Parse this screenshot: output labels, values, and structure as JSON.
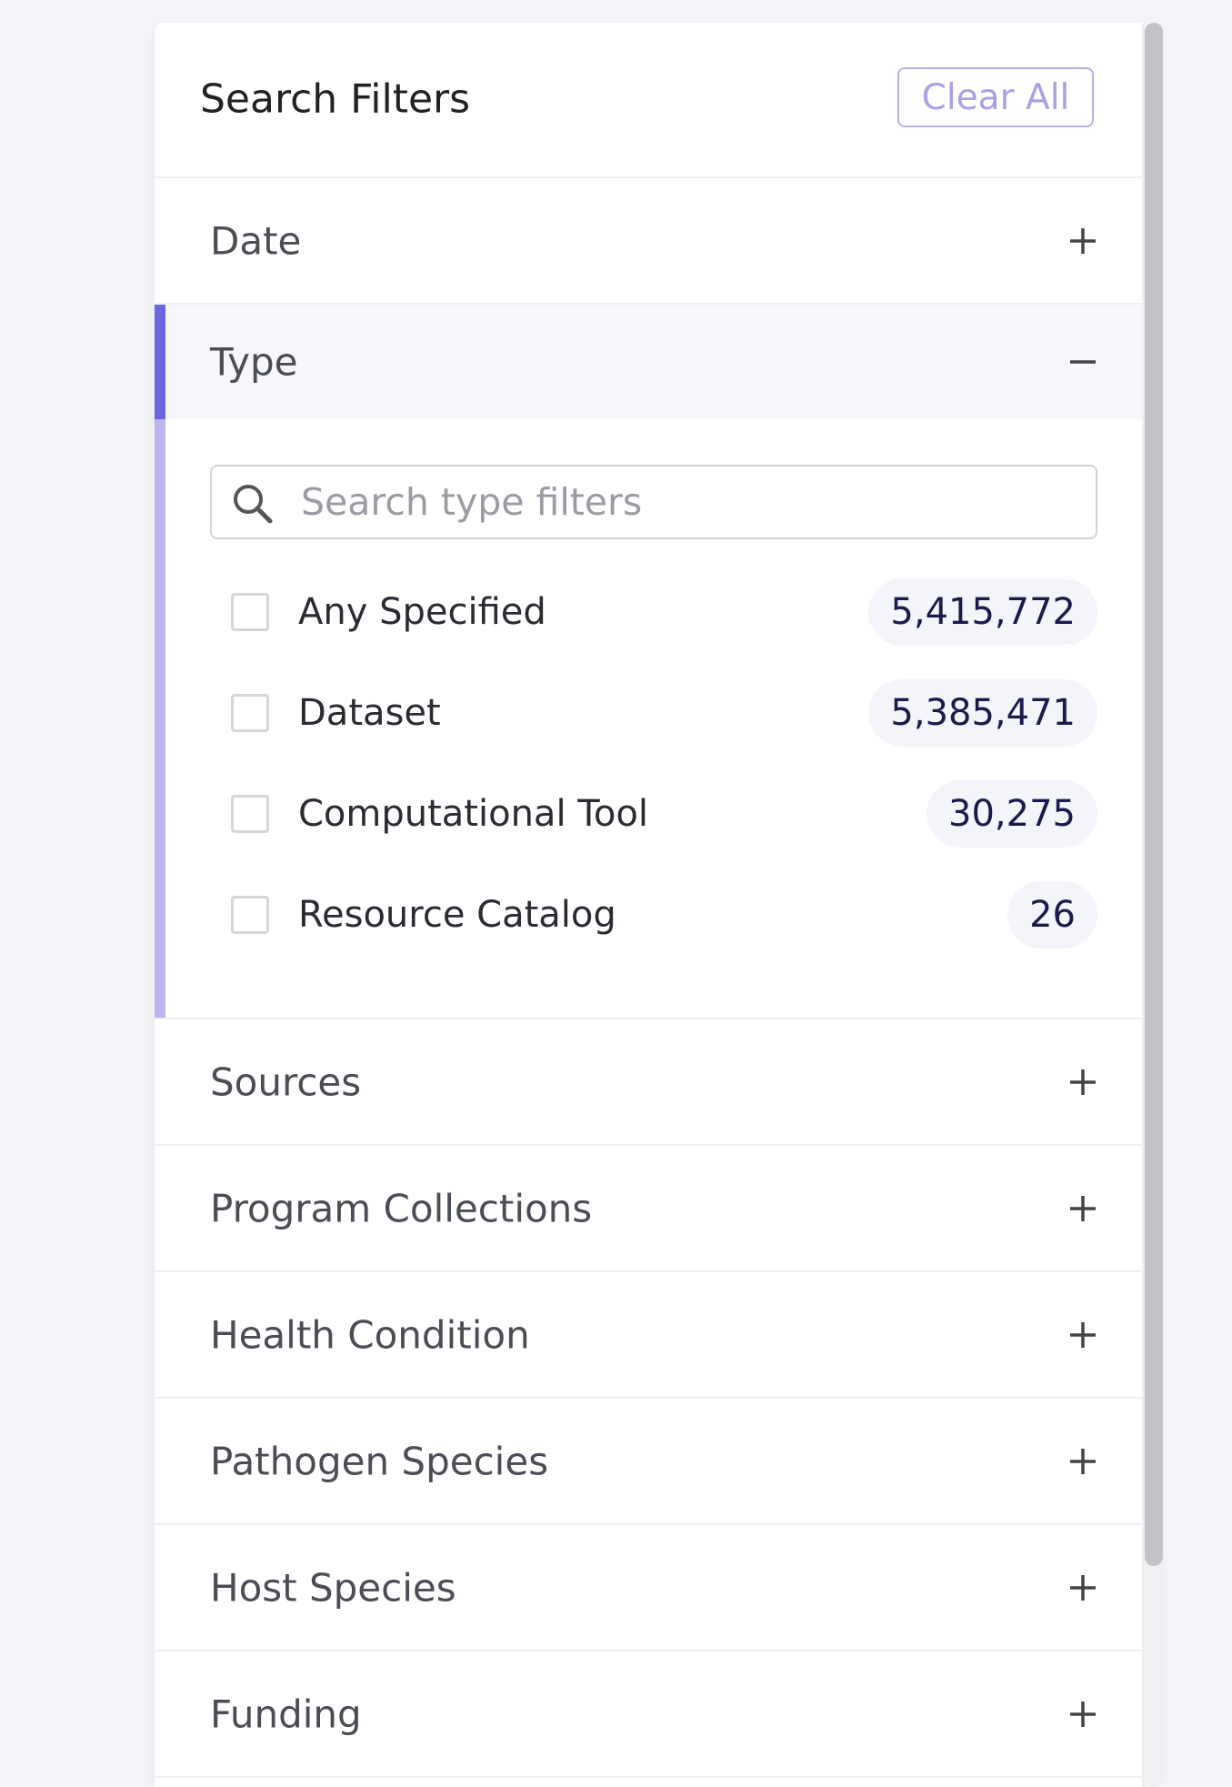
{
  "header": {
    "title": "Search Filters",
    "clear_button": "Clear All"
  },
  "sections_before": [
    {
      "label": "Date"
    }
  ],
  "open_section": {
    "label": "Type",
    "search_placeholder": "Search type filters",
    "items": [
      {
        "label": "Any Specified",
        "count": "5,415,772"
      },
      {
        "label": "Dataset",
        "count": "5,385,471"
      },
      {
        "label": "Computational Tool",
        "count": "30,275"
      },
      {
        "label": "Resource Catalog",
        "count": "26"
      }
    ]
  },
  "sections_after": [
    {
      "label": "Sources"
    },
    {
      "label": "Program Collections"
    },
    {
      "label": "Health Condition"
    },
    {
      "label": "Pathogen Species"
    },
    {
      "label": "Host Species"
    },
    {
      "label": "Funding"
    }
  ]
}
